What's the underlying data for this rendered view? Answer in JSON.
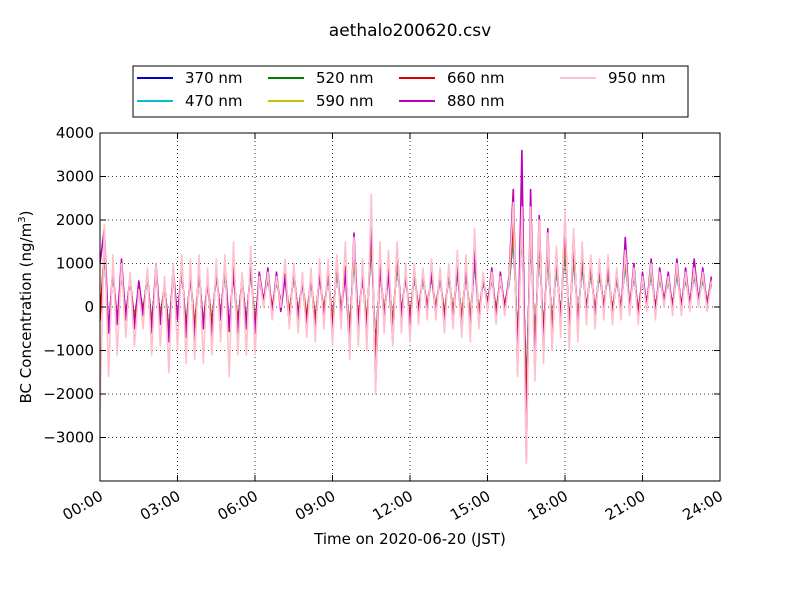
{
  "chart_data": {
    "type": "line",
    "title": "aethalo200620.csv",
    "xlabel": "Time on 2020-06-20 (JST)",
    "ylabel_main": "BC Concentration (ng/m",
    "ylabel_sup": "3",
    "ylabel_end": ")",
    "xlim": [
      "00:00",
      "24:00"
    ],
    "ylim": [
      -4000,
      4000
    ],
    "x_ticks": [
      "00:00",
      "03:00",
      "06:00",
      "09:00",
      "12:00",
      "15:00",
      "18:00",
      "21:00",
      "24:00"
    ],
    "y_ticks": [
      "4000",
      "3000",
      "2000",
      "1000",
      "0",
      "−1000",
      "−2000",
      "−3000"
    ],
    "grid": true,
    "legend_position": "top",
    "series": [
      {
        "name": "370 nm",
        "color": "#0000cc"
      },
      {
        "name": "470 nm",
        "color": "#00bfcf"
      },
      {
        "name": "520 nm",
        "color": "#008000"
      },
      {
        "name": "590 nm",
        "color": "#c8c000"
      },
      {
        "name": "660 nm",
        "color": "#dd0000"
      },
      {
        "name": "880 nm",
        "color": "#bb00bb"
      },
      {
        "name": "950 nm",
        "color": "#ffc0cb"
      }
    ],
    "points": [
      [
        "00:00",
        1000,
        -2400
      ],
      [
        "00:10",
        1800,
        1900
      ],
      [
        "00:20",
        -600,
        -1600
      ],
      [
        "00:30",
        900,
        1200
      ],
      [
        "00:40",
        -400,
        -1100
      ],
      [
        "00:50",
        1100,
        1000
      ],
      [
        "01:00",
        -300,
        -700
      ],
      [
        "01:10",
        700,
        800
      ],
      [
        "01:20",
        -500,
        -900
      ],
      [
        "01:30",
        600,
        400
      ],
      [
        "01:40",
        -200,
        -500
      ],
      [
        "01:50",
        800,
        900
      ],
      [
        "02:00",
        -600,
        -1100
      ],
      [
        "02:10",
        1000,
        1000
      ],
      [
        "02:20",
        -400,
        -900
      ],
      [
        "02:30",
        500,
        700
      ],
      [
        "02:40",
        -800,
        -1500
      ],
      [
        "02:50",
        900,
        1000
      ],
      [
        "03:00",
        -300,
        -1000
      ],
      [
        "03:10",
        1000,
        1200
      ],
      [
        "03:20",
        -700,
        -1300
      ],
      [
        "03:30",
        800,
        1100
      ],
      [
        "03:40",
        -800,
        -1200
      ],
      [
        "03:50",
        900,
        1200
      ],
      [
        "04:00",
        -500,
        -1300
      ],
      [
        "04:10",
        600,
        900
      ],
      [
        "04:20",
        -700,
        -1100
      ],
      [
        "04:30",
        900,
        1100
      ],
      [
        "04:40",
        -300,
        -800
      ],
      [
        "04:50",
        1000,
        1200
      ],
      [
        "05:00",
        -500,
        -1600
      ],
      [
        "05:10",
        800,
        1500
      ],
      [
        "05:20",
        -600,
        -1100
      ],
      [
        "05:30",
        700,
        800
      ],
      [
        "05:40",
        -500,
        -1100
      ],
      [
        "05:50",
        1000,
        1400
      ],
      [
        "06:00",
        -600,
        -1100
      ],
      [
        "06:10",
        800,
        700
      ],
      [
        "06:20",
        100,
        0
      ],
      [
        "06:30",
        900,
        800
      ],
      [
        "06:40",
        -200,
        -300
      ],
      [
        "06:50",
        800,
        700
      ],
      [
        "07:00",
        -100,
        0
      ],
      [
        "07:10",
        700,
        1100
      ],
      [
        "07:20",
        -400,
        -500
      ],
      [
        "07:30",
        900,
        1000
      ],
      [
        "07:40",
        -300,
        -600
      ],
      [
        "07:50",
        600,
        800
      ],
      [
        "08:00",
        -500,
        -700
      ],
      [
        "08:10",
        700,
        900
      ],
      [
        "08:20",
        -600,
        -800
      ],
      [
        "08:30",
        800,
        1100
      ],
      [
        "08:40",
        -300,
        -500
      ],
      [
        "08:50",
        900,
        1100
      ],
      [
        "09:00",
        -700,
        -900
      ],
      [
        "09:10",
        1100,
        1200
      ],
      [
        "09:20",
        -200,
        -500
      ],
      [
        "09:30",
        800,
        1500
      ],
      [
        "09:40",
        -1000,
        -1200
      ],
      [
        "09:50",
        1700,
        1600
      ],
      [
        "10:00",
        -500,
        -900
      ],
      [
        "10:10",
        800,
        1100
      ],
      [
        "10:20",
        -700,
        -1000
      ],
      [
        "10:30",
        2100,
        2600
      ],
      [
        "10:40",
        -1800,
        -2000
      ],
      [
        "10:50",
        1000,
        1500
      ],
      [
        "11:00",
        -300,
        -600
      ],
      [
        "11:10",
        800,
        1300
      ],
      [
        "11:20",
        -800,
        -900
      ],
      [
        "11:30",
        1400,
        1500
      ],
      [
        "11:40",
        -300,
        -600
      ],
      [
        "11:50",
        800,
        1000
      ],
      [
        "12:00",
        -500,
        -800
      ],
      [
        "12:10",
        900,
        1000
      ],
      [
        "12:20",
        -200,
        -400
      ],
      [
        "12:30",
        800,
        900
      ],
      [
        "12:40",
        -100,
        -300
      ],
      [
        "12:50",
        800,
        1100
      ],
      [
        "13:00",
        -200,
        -300
      ],
      [
        "13:10",
        800,
        900
      ],
      [
        "13:20",
        -400,
        -600
      ],
      [
        "13:30",
        900,
        1000
      ],
      [
        "13:40",
        -400,
        -500
      ],
      [
        "13:50",
        1000,
        1300
      ],
      [
        "14:00",
        -600,
        -700
      ],
      [
        "14:10",
        1000,
        1200
      ],
      [
        "14:20",
        -600,
        -800
      ],
      [
        "14:30",
        1300,
        1800
      ],
      [
        "14:40",
        -400,
        -500
      ],
      [
        "14:50",
        700,
        800
      ],
      [
        "15:00",
        0,
        -100
      ],
      [
        "15:10",
        900,
        800
      ],
      [
        "15:20",
        -300,
        -400
      ],
      [
        "15:30",
        800,
        700
      ],
      [
        "15:40",
        -100,
        -200
      ],
      [
        "15:50",
        700,
        600
      ],
      [
        "16:00",
        2700,
        2400
      ],
      [
        "16:10",
        -1500,
        -1600
      ],
      [
        "16:20",
        3600,
        2300
      ],
      [
        "16:30",
        -3500,
        -3600
      ],
      [
        "16:40",
        2700,
        2300
      ],
      [
        "16:50",
        -1500,
        -1700
      ],
      [
        "17:00",
        2100,
        2000
      ],
      [
        "17:10",
        -1100,
        -1300
      ],
      [
        "17:20",
        1800,
        1700
      ],
      [
        "17:30",
        -900,
        -1000
      ],
      [
        "17:40",
        1300,
        1400
      ],
      [
        "17:50",
        -500,
        -700
      ],
      [
        "18:00",
        2100,
        2200
      ],
      [
        "18:10",
        -800,
        -1000
      ],
      [
        "18:20",
        1700,
        1800
      ],
      [
        "18:30",
        -600,
        -800
      ],
      [
        "18:40",
        1300,
        1500
      ],
      [
        "18:50",
        -200,
        -400
      ],
      [
        "19:00",
        1100,
        1200
      ],
      [
        "19:10",
        -300,
        -500
      ],
      [
        "19:20",
        1000,
        1100
      ],
      [
        "19:30",
        -100,
        -300
      ],
      [
        "19:40",
        1000,
        1200
      ],
      [
        "19:50",
        -300,
        -400
      ],
      [
        "20:00",
        800,
        900
      ],
      [
        "20:10",
        -200,
        -300
      ],
      [
        "20:20",
        1600,
        1300
      ],
      [
        "20:30",
        -100,
        -200
      ],
      [
        "20:40",
        1000,
        900
      ],
      [
        "20:50",
        -300,
        -400
      ],
      [
        "21:00",
        800,
        700
      ],
      [
        "21:10",
        0,
        -100
      ],
      [
        "21:20",
        1100,
        1000
      ],
      [
        "21:30",
        -200,
        -300
      ],
      [
        "21:40",
        900,
        800
      ],
      [
        "21:50",
        100,
        0
      ],
      [
        "22:00",
        800,
        700
      ],
      [
        "22:10",
        -100,
        -200
      ],
      [
        "22:20",
        1100,
        1000
      ],
      [
        "22:30",
        -100,
        -200
      ],
      [
        "22:40",
        900,
        800
      ],
      [
        "22:50",
        0,
        -100
      ],
      [
        "23:00",
        1100,
        900
      ],
      [
        "23:10",
        100,
        0
      ],
      [
        "23:20",
        900,
        800
      ],
      [
        "23:30",
        0,
        -100
      ],
      [
        "23:40",
        700,
        600
      ]
    ]
  }
}
